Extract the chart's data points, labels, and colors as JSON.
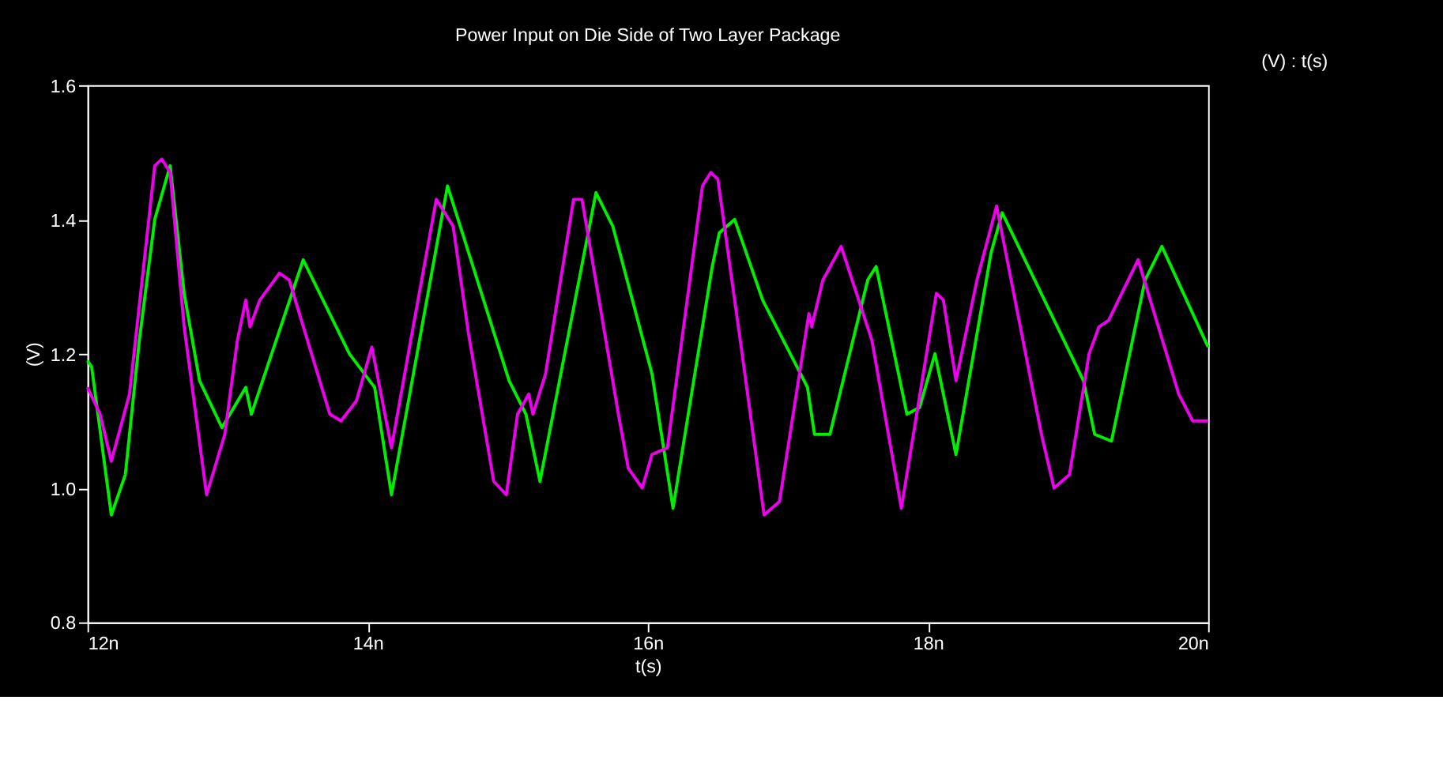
{
  "chart_data": {
    "type": "line",
    "title": "Power Input on Die Side of Two Layer Package",
    "xlabel": "t(s)",
    "ylabel": "(V)",
    "annotations": [
      "(V) : t(s)"
    ],
    "xlim": [
      12,
      20
    ],
    "xticks": [
      {
        "value": 12,
        "label": "12n"
      },
      {
        "value": 14,
        "label": "14n"
      },
      {
        "value": 16,
        "label": "16n"
      },
      {
        "value": 18,
        "label": "18n"
      },
      {
        "value": 20,
        "label": "20n"
      }
    ],
    "ylim": [
      0.8,
      1.6
    ],
    "yticks": [
      0.8,
      {
        "value": 1.0,
        "label": "1.0"
      },
      1.2,
      1.4,
      1.6
    ],
    "grid": false,
    "marker": "none",
    "line_style": "solid",
    "series": [
      {
        "color": "#00ee00",
        "x": [
          12.0,
          12.03,
          12.17,
          12.27,
          12.37,
          12.48,
          12.59,
          12.69,
          12.8,
          12.96,
          13.13,
          13.17,
          13.54,
          13.87,
          14.05,
          14.17,
          14.57,
          15.01,
          15.13,
          15.23,
          15.63,
          15.75,
          16.03,
          16.18,
          16.46,
          16.51,
          16.62,
          16.82,
          17.14,
          17.19,
          17.3,
          17.57,
          17.63,
          17.85,
          17.94,
          18.05,
          18.2,
          18.45,
          18.53,
          19.11,
          19.19,
          19.31,
          19.55,
          19.67,
          20.0
        ],
        "values": [
          1.19,
          1.18,
          0.96,
          1.02,
          1.22,
          1.4,
          1.48,
          1.29,
          1.16,
          1.09,
          1.15,
          1.11,
          1.34,
          1.2,
          1.15,
          0.99,
          1.45,
          1.16,
          1.11,
          1.01,
          1.44,
          1.39,
          1.17,
          0.97,
          1.33,
          1.38,
          1.4,
          1.28,
          1.15,
          1.08,
          1.08,
          1.31,
          1.33,
          1.11,
          1.12,
          1.2,
          1.05,
          1.35,
          1.41,
          1.16,
          1.08,
          1.07,
          1.31,
          1.36,
          1.21
        ]
      },
      {
        "color": "#ee00ee",
        "x": [
          12.0,
          12.09,
          12.17,
          12.3,
          12.48,
          12.53,
          12.59,
          12.69,
          12.85,
          12.98,
          13.07,
          13.13,
          13.16,
          13.23,
          13.37,
          13.44,
          13.73,
          13.81,
          13.92,
          14.03,
          14.17,
          14.29,
          14.49,
          14.61,
          14.72,
          14.9,
          14.99,
          15.07,
          15.15,
          15.18,
          15.27,
          15.47,
          15.53,
          15.79,
          15.86,
          15.96,
          16.03,
          16.14,
          16.39,
          16.45,
          16.5,
          16.66,
          16.83,
          16.94,
          17.15,
          17.17,
          17.25,
          17.38,
          17.6,
          17.81,
          18.06,
          18.11,
          18.2,
          18.35,
          18.49,
          18.81,
          18.9,
          19.01,
          19.15,
          19.22,
          19.29,
          19.5,
          19.79,
          19.89,
          20.0
        ],
        "values": [
          1.15,
          1.11,
          1.04,
          1.14,
          1.48,
          1.49,
          1.47,
          1.24,
          0.99,
          1.08,
          1.22,
          1.28,
          1.24,
          1.28,
          1.32,
          1.31,
          1.11,
          1.1,
          1.13,
          1.21,
          1.06,
          1.2,
          1.43,
          1.39,
          1.23,
          1.01,
          0.99,
          1.11,
          1.14,
          1.11,
          1.17,
          1.43,
          1.43,
          1.11,
          1.03,
          1.0,
          1.05,
          1.06,
          1.45,
          1.47,
          1.46,
          1.22,
          0.96,
          0.98,
          1.26,
          1.24,
          1.31,
          1.36,
          1.22,
          0.97,
          1.29,
          1.28,
          1.16,
          1.31,
          1.42,
          1.08,
          1.0,
          1.02,
          1.2,
          1.24,
          1.25,
          1.34,
          1.14,
          1.1,
          1.1
        ]
      }
    ]
  }
}
